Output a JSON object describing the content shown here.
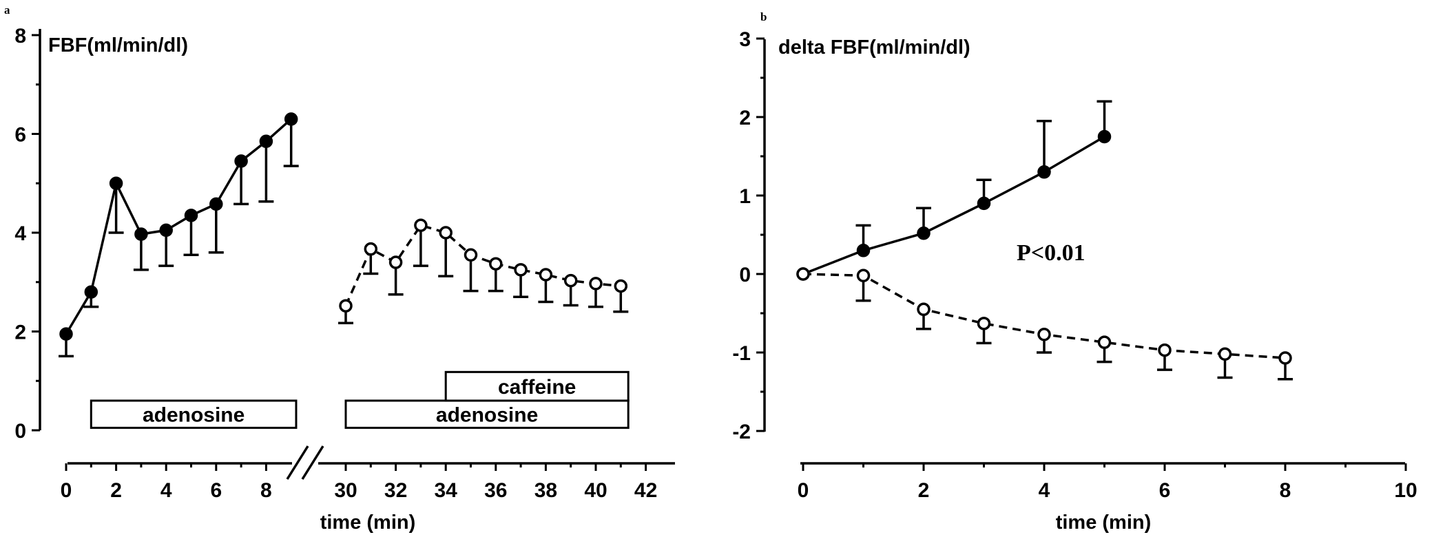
{
  "chart_data": [
    {
      "panel": "a",
      "type": "line",
      "ylabel": "FBF(ml/min/dl)",
      "xlabel": "time (min)",
      "ylim": [
        0,
        8
      ],
      "yticks": [
        "0",
        "2",
        "4",
        "6",
        "8"
      ],
      "xticks_left": [
        "0",
        "2",
        "4",
        "6",
        "8"
      ],
      "xticks_right": [
        "30",
        "32",
        "34",
        "36",
        "38",
        "40",
        "42"
      ],
      "axis_break": true,
      "series": [
        {
          "marker": "filled",
          "line": "solid",
          "x": [
            0,
            1,
            2,
            3,
            4,
            5,
            6,
            7,
            8,
            9
          ],
          "y": [
            1.95,
            2.8,
            5.0,
            3.97,
            4.05,
            4.35,
            4.58,
            5.45,
            5.85,
            6.3
          ],
          "err": [
            0.45,
            0.3,
            1.0,
            0.72,
            0.72,
            0.8,
            0.98,
            0.87,
            1.22,
            0.95
          ],
          "err_dir": "down"
        },
        {
          "marker": "open",
          "line": "dashed",
          "x": [
            30,
            31,
            32,
            33,
            34,
            35,
            36,
            37,
            38,
            39,
            40,
            41
          ],
          "y": [
            2.52,
            3.67,
            3.4,
            4.15,
            4.0,
            3.55,
            3.37,
            3.25,
            3.15,
            3.03,
            2.97,
            2.92
          ],
          "err": [
            0.35,
            0.5,
            0.65,
            0.82,
            0.88,
            0.73,
            0.55,
            0.55,
            0.55,
            0.5,
            0.47,
            0.52
          ],
          "err_dir": "down"
        }
      ],
      "treatment_bars": [
        {
          "label": "adenosine",
          "x_start": 1,
          "x_end": 9.2,
          "y_top": 0.6,
          "y_bottom": 0.05
        },
        {
          "label": "adenosine",
          "x_start": 30,
          "x_end": 41.3,
          "y_top": 0.6,
          "y_bottom": 0.05
        },
        {
          "label": "caffeine",
          "x_start": 34,
          "x_end": 41.3,
          "y_top": 1.18,
          "y_bottom": 0.6
        }
      ]
    },
    {
      "panel": "b",
      "type": "line",
      "ylabel": "delta FBF(ml/min/dl)",
      "xlabel": "time (min)",
      "ylim": [
        -2,
        3
      ],
      "xlim": [
        0,
        10
      ],
      "yticks": [
        "-2",
        "-1",
        "0",
        "1",
        "2",
        "3"
      ],
      "xticks": [
        "0",
        "2",
        "4",
        "6",
        "8",
        "10"
      ],
      "annotation": "P<0.01",
      "series": [
        {
          "marker": "filled",
          "line": "solid",
          "x": [
            0,
            1,
            2,
            3,
            4,
            5
          ],
          "y": [
            0,
            0.3,
            0.52,
            0.9,
            1.3,
            1.75
          ],
          "err": [
            0,
            0.32,
            0.32,
            0.3,
            0.65,
            0.45
          ],
          "err_dir": "up"
        },
        {
          "marker": "open",
          "line": "dashed",
          "x": [
            0,
            1,
            2,
            3,
            4,
            5,
            6,
            7,
            8
          ],
          "y": [
            0,
            -0.02,
            -0.45,
            -0.63,
            -0.77,
            -0.87,
            -0.97,
            -1.02,
            -1.07
          ],
          "err": [
            0,
            0.32,
            0.25,
            0.25,
            0.23,
            0.25,
            0.25,
            0.3,
            0.27
          ],
          "err_dir": "down"
        }
      ]
    }
  ],
  "panel_letters": {
    "a": "a",
    "b": "b"
  }
}
